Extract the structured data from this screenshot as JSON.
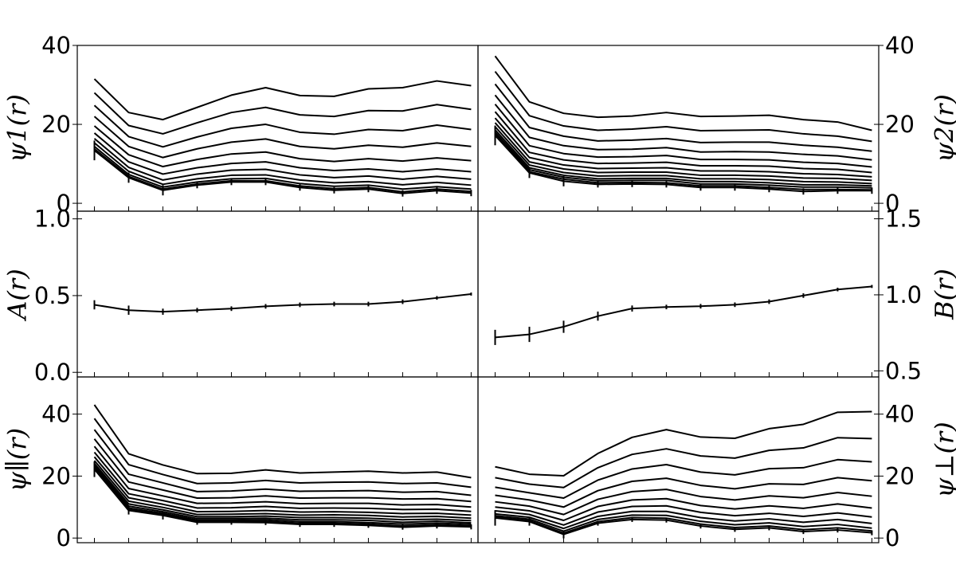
{
  "chart_data": [
    {
      "type": "line",
      "panel": "top-left",
      "ylabel": "ψ1(r)",
      "ylim": [
        -2,
        40
      ],
      "yticks": [
        0,
        20,
        40
      ],
      "yaxis_side": "left",
      "x": [
        1,
        2,
        3,
        4,
        5,
        6,
        7,
        8,
        9,
        10,
        11,
        12
      ],
      "series": [
        {
          "values": [
            31.5,
            23.0,
            21.2,
            24.3,
            27.4,
            29.3,
            27.3,
            27.1,
            29.0,
            29.3,
            31.0,
            29.8
          ]
        },
        {
          "values": [
            28.0,
            19.7,
            17.6,
            20.4,
            23.0,
            24.3,
            22.4,
            22.0,
            23.5,
            23.4,
            25.0,
            23.8
          ]
        },
        {
          "values": [
            24.8,
            16.9,
            14.3,
            16.8,
            19.0,
            20.0,
            18.0,
            17.5,
            18.7,
            18.4,
            19.8,
            18.7
          ]
        },
        {
          "values": [
            22.0,
            14.4,
            11.6,
            13.8,
            15.5,
            16.3,
            14.4,
            13.8,
            14.7,
            14.2,
            15.3,
            14.4
          ]
        },
        {
          "values": [
            19.6,
            12.3,
            9.3,
            11.1,
            12.5,
            13.0,
            11.3,
            10.6,
            11.3,
            10.7,
            11.5,
            10.8
          ]
        },
        {
          "values": [
            17.8,
            10.5,
            7.4,
            9.0,
            10.1,
            10.5,
            9.0,
            8.3,
            8.7,
            8.0,
            8.7,
            8.0
          ]
        },
        {
          "values": [
            16.4,
            9.1,
            5.9,
            7.4,
            8.4,
            8.6,
            7.2,
            6.5,
            6.9,
            6.1,
            6.8,
            6.1
          ]
        },
        {
          "values": [
            15.3,
            8.1,
            4.8,
            6.2,
            7.1,
            7.2,
            5.9,
            5.2,
            5.5,
            4.7,
            5.3,
            4.6
          ]
        },
        {
          "values": [
            14.4,
            7.3,
            4.1,
            5.4,
            6.2,
            6.3,
            5.0,
            4.3,
            4.6,
            3.6,
            4.2,
            3.6
          ]
        },
        {
          "values": [
            13.8,
            6.8,
            3.6,
            4.9,
            5.7,
            5.7,
            4.4,
            3.7,
            4.0,
            2.9,
            3.6,
            3.0
          ]
        },
        {
          "values": [
            13.4,
            6.5,
            3.3,
            4.6,
            5.4,
            5.4,
            4.0,
            3.3,
            3.6,
            2.5,
            3.2,
            2.6
          ]
        }
      ]
    },
    {
      "type": "line",
      "panel": "top-right",
      "ylabel": "ψ2(r)",
      "ylim": [
        -2,
        40
      ],
      "yticks": [
        0,
        20,
        40
      ],
      "yaxis_side": "right",
      "x": [
        1,
        2,
        3,
        4,
        5,
        6,
        7,
        8,
        9,
        10,
        11,
        12
      ],
      "series": [
        {
          "values": [
            37.3,
            25.7,
            22.8,
            21.8,
            22.1,
            23.0,
            22.0,
            22.1,
            22.3,
            21.2,
            20.6,
            18.5
          ]
        },
        {
          "values": [
            33.4,
            22.2,
            19.6,
            18.5,
            18.8,
            19.4,
            18.4,
            18.5,
            18.6,
            17.6,
            17.0,
            15.7
          ]
        },
        {
          "values": [
            30.2,
            19.2,
            17.0,
            15.8,
            16.0,
            16.4,
            15.4,
            15.5,
            15.5,
            14.7,
            14.2,
            13.2
          ]
        },
        {
          "values": [
            27.4,
            16.7,
            14.6,
            13.6,
            13.7,
            14.1,
            13.0,
            13.1,
            13.0,
            12.4,
            12.0,
            11.0
          ]
        },
        {
          "values": [
            25.1,
            14.6,
            12.6,
            11.7,
            11.8,
            12.1,
            11.1,
            11.1,
            11.0,
            10.4,
            10.1,
            9.2
          ]
        },
        {
          "values": [
            23.2,
            12.9,
            11.0,
            10.1,
            10.2,
            10.4,
            9.5,
            9.5,
            9.4,
            8.8,
            8.6,
            7.8
          ]
        },
        {
          "values": [
            21.6,
            11.6,
            9.7,
            8.8,
            8.9,
            9.0,
            8.2,
            8.2,
            8.0,
            7.5,
            7.3,
            6.7
          ]
        },
        {
          "values": [
            20.4,
            10.5,
            8.7,
            7.8,
            7.9,
            7.9,
            7.1,
            7.1,
            6.9,
            6.4,
            6.3,
            5.8
          ]
        },
        {
          "values": [
            19.4,
            9.7,
            7.8,
            6.9,
            7.0,
            7.0,
            6.2,
            6.2,
            6.0,
            5.5,
            5.4,
            5.0
          ]
        },
        {
          "values": [
            18.6,
            9.0,
            7.1,
            6.2,
            6.3,
            6.3,
            5.5,
            5.5,
            5.2,
            4.7,
            4.7,
            4.4
          ]
        },
        {
          "values": [
            18.0,
            8.5,
            6.6,
            5.7,
            5.8,
            5.8,
            4.9,
            4.9,
            4.6,
            4.1,
            4.1,
            3.9
          ]
        },
        {
          "values": [
            17.5,
            8.0,
            6.1,
            5.2,
            5.3,
            5.2,
            4.4,
            4.4,
            4.0,
            3.5,
            3.5,
            3.4
          ]
        },
        {
          "values": [
            17.2,
            7.7,
            5.6,
            4.8,
            4.9,
            4.8,
            4.0,
            4.0,
            3.6,
            3.0,
            3.2,
            3.2
          ]
        }
      ]
    },
    {
      "type": "line",
      "panel": "middle-left",
      "ylabel": "A(r)",
      "ylim": [
        -0.03,
        1.05
      ],
      "yticks": [
        "0.0",
        "0.5",
        "1.0"
      ],
      "yaxis_side": "left",
      "x": [
        1,
        2,
        3,
        4,
        5,
        6,
        7,
        8,
        9,
        10,
        11,
        12
      ],
      "series": [
        {
          "values": [
            0.44,
            0.405,
            0.395,
            0.405,
            0.415,
            0.43,
            0.44,
            0.445,
            0.445,
            0.46,
            0.485,
            0.51
          ],
          "errors": [
            0.03,
            0.03,
            0.02,
            0.015,
            0.015,
            0.015,
            0.015,
            0.015,
            0.015,
            0.015,
            0.012,
            0.01
          ]
        }
      ]
    },
    {
      "type": "line",
      "panel": "middle-right",
      "ylabel": "B(r)",
      "ylim": [
        0.46,
        1.55
      ],
      "yticks": [
        "0.5",
        "1.0",
        "1.5"
      ],
      "yaxis_side": "right",
      "x": [
        1,
        2,
        3,
        4,
        5,
        6,
        7,
        8,
        9,
        10,
        11,
        12
      ],
      "series": [
        {
          "values": [
            0.72,
            0.74,
            0.79,
            0.86,
            0.91,
            0.92,
            0.925,
            0.935,
            0.955,
            0.995,
            1.035,
            1.055
          ],
          "errors": [
            0.05,
            0.05,
            0.04,
            0.03,
            0.02,
            0.015,
            0.015,
            0.015,
            0.015,
            0.015,
            0.012,
            0.01
          ]
        }
      ]
    },
    {
      "type": "line",
      "panel": "bottom-left",
      "ylabel": "ψ∥(r)",
      "ylim": [
        -1.5,
        52
      ],
      "yticks": [
        0,
        20,
        40
      ],
      "yaxis_side": "left",
      "x": [
        1,
        2,
        3,
        4,
        5,
        6,
        7,
        8,
        9,
        10,
        11,
        12
      ],
      "series": [
        {
          "values": [
            43.0,
            27.2,
            23.6,
            20.8,
            20.9,
            22.0,
            21.0,
            21.3,
            21.6,
            21.0,
            21.3,
            19.5
          ]
        },
        {
          "values": [
            38.6,
            23.7,
            20.5,
            17.6,
            17.8,
            18.6,
            17.8,
            18.0,
            18.1,
            17.6,
            17.8,
            16.4
          ]
        },
        {
          "values": [
            35.0,
            20.6,
            17.8,
            15.0,
            15.2,
            15.8,
            15.1,
            15.2,
            15.3,
            14.8,
            15.0,
            13.8
          ]
        },
        {
          "values": [
            32.0,
            18.1,
            15.5,
            12.9,
            13.0,
            13.6,
            12.9,
            13.0,
            13.0,
            12.6,
            12.7,
            11.8
          ]
        },
        {
          "values": [
            29.6,
            16.0,
            13.6,
            11.2,
            11.3,
            11.7,
            11.1,
            11.2,
            11.2,
            10.7,
            10.8,
            10.0
          ]
        },
        {
          "values": [
            27.7,
            14.3,
            12.1,
            9.7,
            9.8,
            10.2,
            9.6,
            9.7,
            9.6,
            9.2,
            9.3,
            8.6
          ]
        },
        {
          "values": [
            26.2,
            13.0,
            10.9,
            8.5,
            8.6,
            8.9,
            8.4,
            8.5,
            8.3,
            7.9,
            8.0,
            7.4
          ]
        },
        {
          "values": [
            25.0,
            11.9,
            9.9,
            7.6,
            7.7,
            7.9,
            7.4,
            7.5,
            7.3,
            6.8,
            7.0,
            6.4
          ]
        },
        {
          "values": [
            24.1,
            11.0,
            9.1,
            6.9,
            6.9,
            7.1,
            6.6,
            6.6,
            6.4,
            5.9,
            6.1,
            5.6
          ]
        },
        {
          "values": [
            23.4,
            10.3,
            8.5,
            6.3,
            6.3,
            6.4,
            5.9,
            5.9,
            5.7,
            5.1,
            5.4,
            4.9
          ]
        },
        {
          "values": [
            22.9,
            9.7,
            8.0,
            5.8,
            5.8,
            5.9,
            5.3,
            5.3,
            5.0,
            4.5,
            4.8,
            4.4
          ]
        },
        {
          "values": [
            22.5,
            9.2,
            7.6,
            5.4,
            5.4,
            5.4,
            4.8,
            4.8,
            4.5,
            3.9,
            4.3,
            3.9
          ]
        },
        {
          "values": [
            22.2,
            8.9,
            7.3,
            5.1,
            5.1,
            5.0,
            4.4,
            4.4,
            4.1,
            3.5,
            3.9,
            3.6
          ]
        }
      ]
    },
    {
      "type": "line",
      "panel": "bottom-right",
      "ylabel": "ψ⊥(r)",
      "ylim": [
        -1.5,
        52
      ],
      "yticks": [
        0,
        20,
        40
      ],
      "yaxis_side": "right",
      "x": [
        1,
        2,
        3,
        4,
        5,
        6,
        7,
        8,
        9,
        10,
        11,
        12
      ],
      "series": [
        {
          "values": [
            23.0,
            20.6,
            20.1,
            27.3,
            32.5,
            35.0,
            32.6,
            32.2,
            35.3,
            36.7,
            40.6,
            40.8
          ]
        },
        {
          "values": [
            19.5,
            17.4,
            16.3,
            22.7,
            27.0,
            28.8,
            26.5,
            25.8,
            28.3,
            29.1,
            32.4,
            32.1
          ]
        },
        {
          "values": [
            16.4,
            14.6,
            12.9,
            18.7,
            22.3,
            23.7,
            21.3,
            20.4,
            22.4,
            22.7,
            25.3,
            24.6
          ]
        },
        {
          "values": [
            13.8,
            12.3,
            10.0,
            15.3,
            18.3,
            19.3,
            17.0,
            15.9,
            17.5,
            17.3,
            19.5,
            18.5
          ]
        },
        {
          "values": [
            11.7,
            10.3,
            7.6,
            12.5,
            15.0,
            15.7,
            13.4,
            12.3,
            13.6,
            13.0,
            14.7,
            13.5
          ]
        },
        {
          "values": [
            10.0,
            8.8,
            5.7,
            10.2,
            12.3,
            12.7,
            10.5,
            9.4,
            10.4,
            9.6,
            11.0,
            9.7
          ]
        },
        {
          "values": [
            8.8,
            7.6,
            4.2,
            8.4,
            10.2,
            10.4,
            8.3,
            7.2,
            8.0,
            7.0,
            8.1,
            6.8
          ]
        },
        {
          "values": [
            7.8,
            6.7,
            3.1,
            7.0,
            8.6,
            8.6,
            6.6,
            5.5,
            6.2,
            5.1,
            6.0,
            4.7
          ]
        },
        {
          "values": [
            7.2,
            6.1,
            2.2,
            6.0,
            7.4,
            7.3,
            5.4,
            4.3,
            4.9,
            3.7,
            4.4,
            3.2
          ]
        },
        {
          "values": [
            6.8,
            5.6,
            1.6,
            5.3,
            6.6,
            6.4,
            4.5,
            3.4,
            3.9,
            2.7,
            3.3,
            2.3
          ]
        },
        {
          "values": [
            6.5,
            5.3,
            1.2,
            4.8,
            6.0,
            5.8,
            3.9,
            2.8,
            3.3,
            2.1,
            2.6,
            1.7
          ]
        }
      ]
    }
  ]
}
